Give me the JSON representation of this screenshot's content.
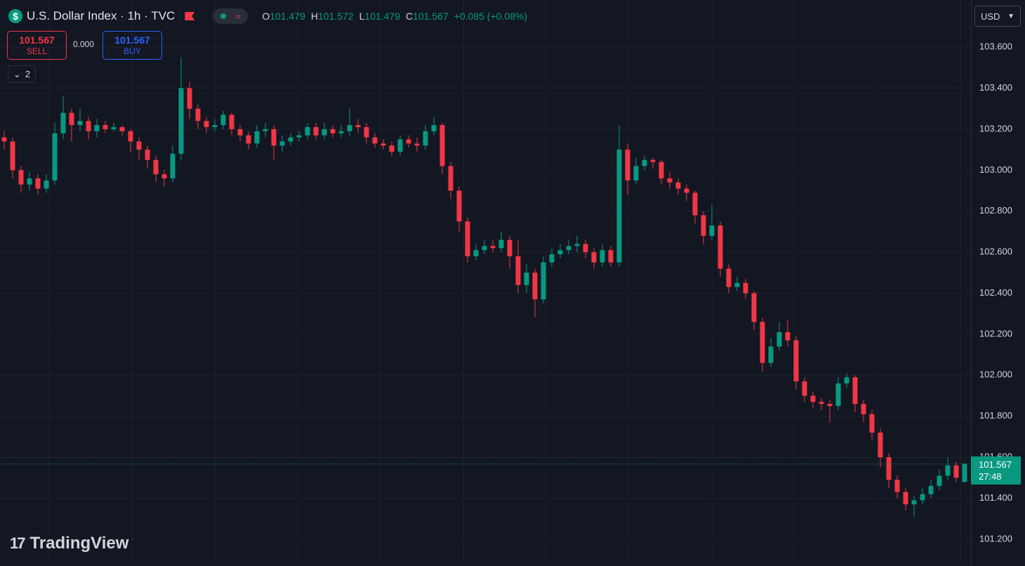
{
  "header": {
    "title": "U.S. Dollar Index · 1h · TVC",
    "o_label": "O",
    "h_label": "H",
    "l_label": "L",
    "c_label": "C",
    "change": "+0.085 (+0.08%)",
    "currency": "USD"
  },
  "trade": {
    "sell_label": "SELL",
    "buy_label": "BUY",
    "spread": "0.000",
    "indicator_count": "2"
  },
  "watermark": "TradingView",
  "chart_data": {
    "type": "candlestick",
    "open": [
      103.16,
      103.14,
      103.0,
      102.93,
      102.96,
      102.91,
      102.95,
      103.18,
      103.28,
      103.22,
      103.24,
      103.19,
      103.22,
      103.2,
      103.21,
      103.19,
      103.14,
      103.1,
      103.05,
      102.98,
      102.96,
      103.08,
      103.4,
      103.3,
      103.24,
      103.21,
      103.22,
      103.27,
      103.2,
      103.17,
      103.13,
      103.19,
      103.2,
      103.12,
      103.14,
      103.16,
      103.17,
      103.21,
      103.17,
      103.2,
      103.18,
      103.19,
      103.22,
      103.21,
      103.16,
      103.13,
      103.12,
      103.09,
      103.15,
      103.13,
      103.12,
      103.19,
      103.22,
      103.02,
      102.9,
      102.75,
      102.58,
      102.61,
      102.63,
      102.62,
      102.66,
      102.58,
      102.44,
      102.5,
      102.37,
      102.55,
      102.59,
      102.61,
      102.63,
      102.64,
      102.6,
      102.55,
      102.61,
      102.55,
      103.1,
      102.95,
      103.02,
      103.05,
      103.04,
      102.96,
      102.94,
      102.91,
      102.89,
      102.78,
      102.68,
      102.73,
      102.52,
      102.43,
      102.45,
      102.4,
      102.26,
      102.06,
      102.14,
      102.21,
      102.17,
      101.97,
      101.9,
      101.87,
      101.86,
      101.85,
      101.96,
      101.99,
      101.86,
      101.81,
      101.72,
      101.6,
      101.49,
      101.43,
      101.37,
      101.39,
      101.42,
      101.46,
      101.51,
      101.56,
      101.479
    ],
    "high": [
      103.19,
      103.16,
      103.02,
      102.99,
      102.98,
      102.98,
      103.23,
      103.36,
      103.3,
      103.3,
      103.26,
      103.25,
      103.24,
      103.23,
      103.22,
      103.2,
      103.16,
      103.12,
      103.07,
      103.0,
      103.12,
      103.55,
      103.43,
      103.32,
      103.26,
      103.25,
      103.29,
      103.28,
      103.22,
      103.19,
      103.22,
      103.23,
      103.22,
      103.17,
      103.18,
      103.19,
      103.23,
      103.23,
      103.23,
      103.22,
      103.22,
      103.3,
      103.25,
      103.23,
      103.18,
      103.15,
      103.14,
      103.17,
      103.17,
      103.16,
      103.22,
      103.26,
      103.23,
      103.04,
      102.92,
      102.77,
      102.64,
      102.66,
      102.66,
      102.7,
      102.68,
      102.66,
      102.54,
      102.52,
      102.58,
      102.62,
      102.64,
      102.66,
      102.68,
      102.66,
      102.62,
      102.64,
      102.63,
      103.22,
      103.13,
      103.06,
      103.07,
      103.06,
      103.05,
      102.99,
      102.96,
      102.93,
      102.9,
      102.8,
      102.83,
      102.75,
      102.54,
      102.48,
      102.47,
      102.41,
      102.28,
      102.18,
      102.26,
      102.27,
      102.19,
      101.99,
      101.92,
      101.89,
      101.88,
      101.99,
      102.01,
      102.0,
      101.88,
      101.83,
      101.74,
      101.62,
      101.51,
      101.45,
      101.41,
      101.45,
      101.49,
      101.54,
      101.6,
      101.58,
      101.572
    ],
    "low": [
      103.1,
      102.96,
      102.89,
      102.9,
      102.88,
      102.89,
      102.93,
      103.15,
      103.14,
      103.19,
      103.15,
      103.16,
      103.18,
      103.19,
      103.17,
      103.09,
      103.05,
      103.01,
      102.94,
      102.92,
      102.94,
      103.05,
      103.25,
      103.2,
      103.18,
      103.19,
      103.2,
      103.17,
      103.14,
      103.1,
      103.11,
      103.16,
      103.05,
      103.09,
      103.12,
      103.14,
      103.15,
      103.15,
      103.15,
      103.16,
      103.16,
      103.17,
      103.18,
      103.13,
      103.11,
      103.1,
      103.07,
      103.07,
      103.11,
      103.09,
      103.1,
      103.17,
      102.98,
      102.86,
      102.7,
      102.55,
      102.56,
      102.59,
      102.6,
      102.6,
      102.52,
      102.4,
      102.4,
      102.28,
      102.35,
      102.53,
      102.57,
      102.59,
      102.6,
      102.57,
      102.52,
      102.53,
      102.53,
      102.53,
      102.88,
      102.93,
      103.0,
      103.01,
      102.93,
      102.91,
      102.88,
      102.85,
      102.74,
      102.64,
      102.66,
      102.48,
      102.4,
      102.41,
      102.37,
      102.22,
      102.02,
      102.04,
      102.12,
      102.14,
      101.93,
      101.87,
      101.84,
      101.83,
      101.77,
      101.83,
      101.94,
      101.82,
      101.77,
      101.68,
      101.55,
      101.45,
      101.4,
      101.34,
      101.31,
      101.37,
      101.4,
      101.44,
      101.49,
      101.48,
      101.479
    ],
    "close": [
      103.14,
      103.0,
      102.93,
      102.96,
      102.91,
      102.95,
      103.18,
      103.28,
      103.22,
      103.24,
      103.19,
      103.22,
      103.2,
      103.21,
      103.19,
      103.14,
      103.1,
      103.05,
      102.98,
      102.96,
      103.08,
      103.4,
      103.3,
      103.24,
      103.21,
      103.22,
      103.27,
      103.2,
      103.17,
      103.13,
      103.19,
      103.2,
      103.12,
      103.14,
      103.16,
      103.17,
      103.21,
      103.17,
      103.2,
      103.18,
      103.19,
      103.22,
      103.21,
      103.16,
      103.13,
      103.12,
      103.09,
      103.15,
      103.13,
      103.12,
      103.19,
      103.22,
      103.02,
      102.9,
      102.75,
      102.58,
      102.61,
      102.63,
      102.62,
      102.66,
      102.58,
      102.44,
      102.5,
      102.37,
      102.55,
      102.59,
      102.61,
      102.63,
      102.64,
      102.6,
      102.55,
      102.61,
      102.55,
      103.1,
      102.95,
      103.02,
      103.05,
      103.04,
      102.96,
      102.94,
      102.91,
      102.89,
      102.78,
      102.68,
      102.73,
      102.52,
      102.43,
      102.45,
      102.4,
      102.26,
      102.06,
      102.14,
      102.21,
      102.17,
      101.97,
      101.9,
      101.87,
      101.86,
      101.85,
      101.96,
      101.99,
      101.86,
      101.81,
      101.72,
      101.6,
      101.49,
      101.43,
      101.37,
      101.39,
      101.42,
      101.46,
      101.51,
      101.56,
      101.5,
      101.567
    ],
    "ylim": [
      101.09,
      103.83
    ],
    "yticks": [
      {
        "value": 101.2,
        "label": "101.200"
      },
      {
        "value": 101.4,
        "label": "101.400"
      },
      {
        "value": 101.6,
        "label": "101.600"
      },
      {
        "value": 101.8,
        "label": "101.800"
      },
      {
        "value": 102.0,
        "label": "102.000"
      },
      {
        "value": 102.2,
        "label": "102.200"
      },
      {
        "value": 102.4,
        "label": "102.400"
      },
      {
        "value": 102.6,
        "label": "102.600"
      },
      {
        "value": 102.8,
        "label": "102.800"
      },
      {
        "value": 103.0,
        "label": "103.000"
      },
      {
        "value": 103.2,
        "label": "103.200"
      },
      {
        "value": 103.4,
        "label": "103.400"
      },
      {
        "value": 103.6,
        "label": "103.600"
      }
    ],
    "up_color": "#089981",
    "down_color": "#f23645",
    "grid": true,
    "countdown": "27:48"
  }
}
